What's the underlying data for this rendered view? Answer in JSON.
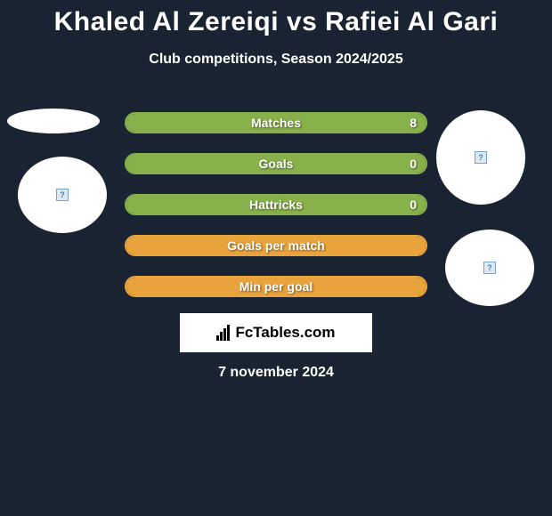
{
  "title": "Khaled Al Zereiqi vs Rafiei Al Gari",
  "subtitle": "Club competitions, Season 2024/2025",
  "date": "7 november 2024",
  "brand": "FcTables.com",
  "colors": {
    "background": "#1a2332",
    "stat_green": "#88b04b",
    "stat_orange": "#e8a33d",
    "text": "#ffffff",
    "brand_bg": "#ffffff",
    "brand_text": "#000000"
  },
  "stats": [
    {
      "label": "Matches",
      "value_right": "8",
      "fill_color": "#88b04b",
      "border_color": "#88b04b",
      "left_pct": 0,
      "right_pct": 100
    },
    {
      "label": "Goals",
      "value_right": "0",
      "fill_color": "#88b04b",
      "border_color": "#88b04b",
      "left_pct": 50,
      "right_pct": 50
    },
    {
      "label": "Hattricks",
      "value_right": "0",
      "fill_color": "#88b04b",
      "border_color": "#88b04b",
      "left_pct": 50,
      "right_pct": 50
    },
    {
      "label": "Goals per match",
      "value_right": "",
      "fill_color": "#e8a33d",
      "border_color": "#e8a33d",
      "left_pct": 50,
      "right_pct": 50
    },
    {
      "label": "Min per goal",
      "value_right": "",
      "fill_color": "#e8a33d",
      "border_color": "#e8a33d",
      "left_pct": 50,
      "right_pct": 50
    }
  ],
  "badges": {
    "top_left": {
      "has_icon": false
    },
    "left": {
      "has_icon": true
    },
    "top_right": {
      "has_icon": true
    },
    "bottom_right": {
      "has_icon": true
    }
  }
}
